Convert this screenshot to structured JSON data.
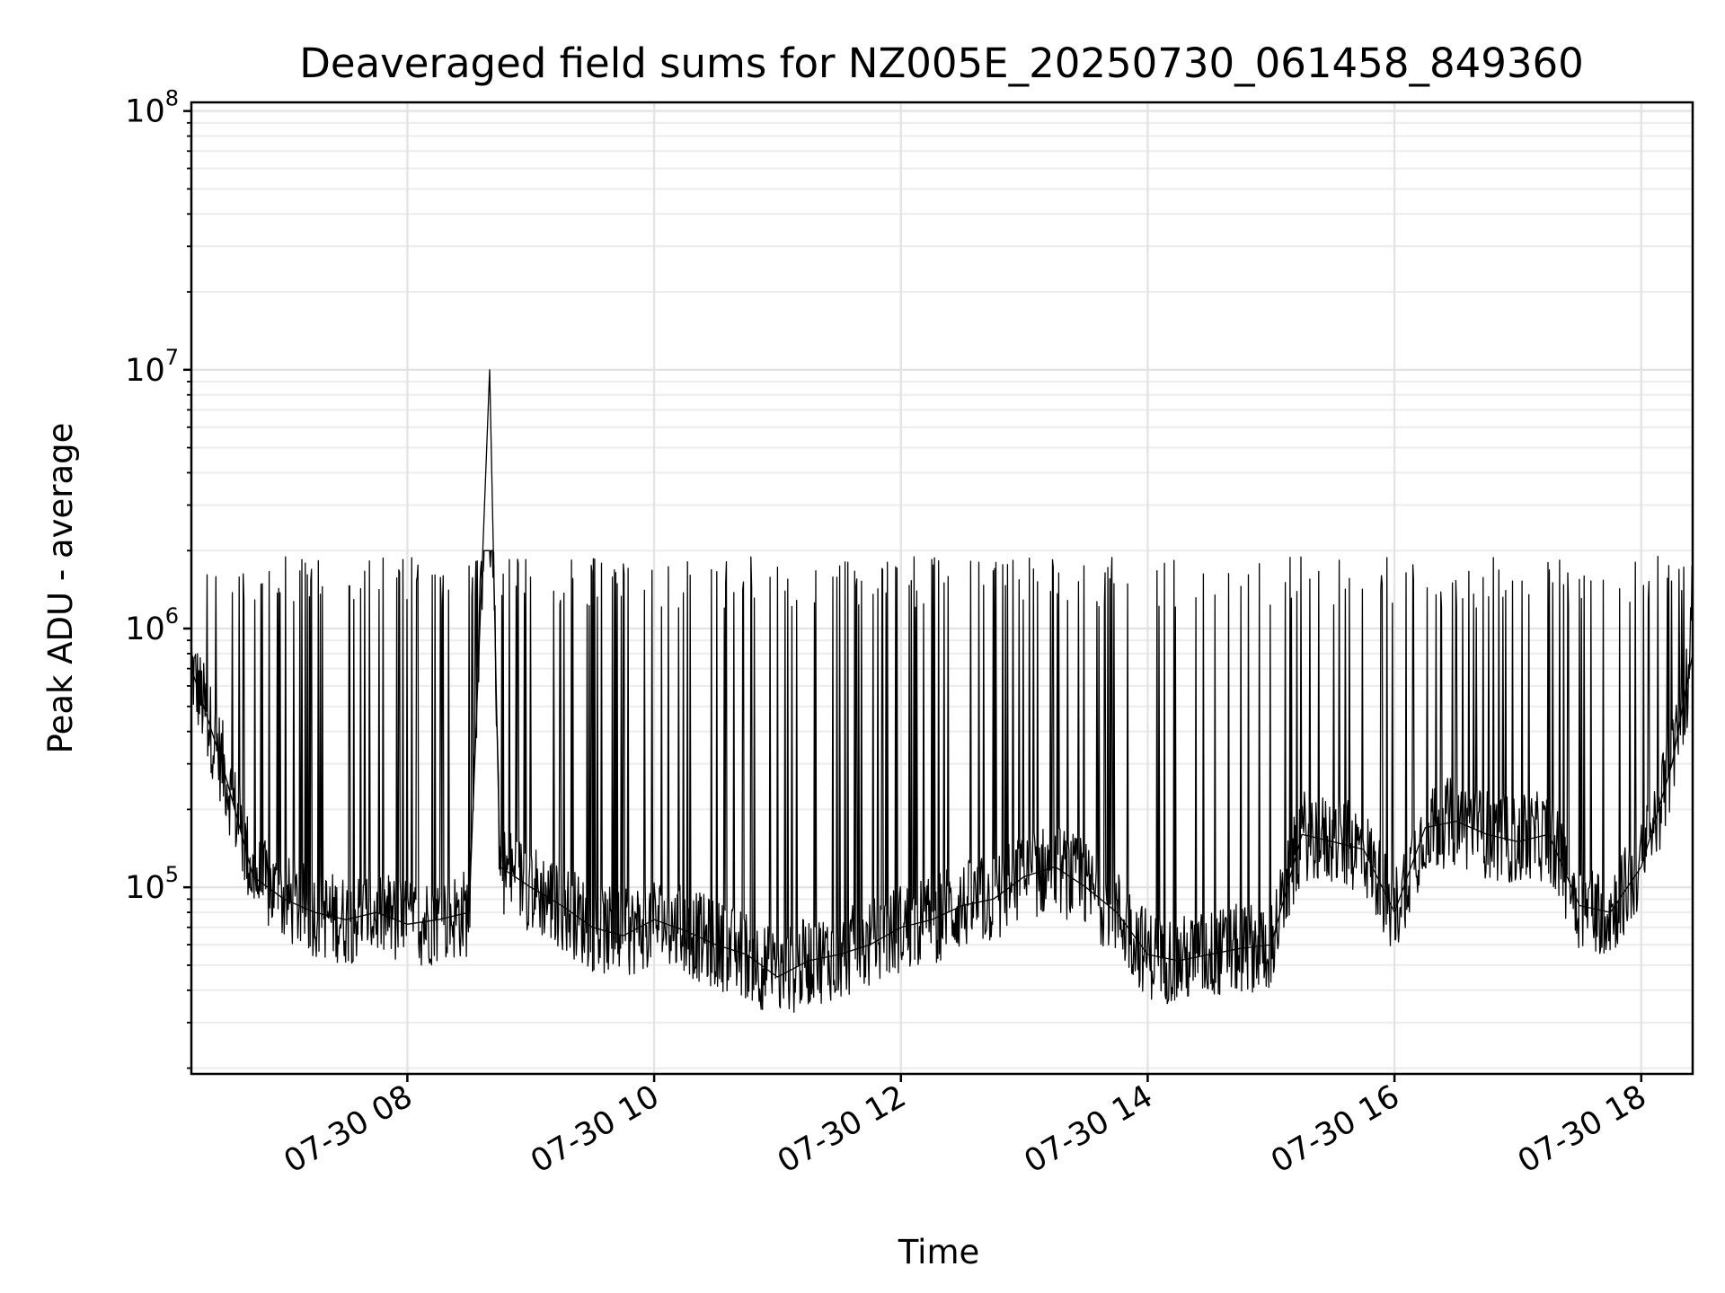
{
  "chart_data": {
    "type": "line",
    "title": "Deaveraged field sums for NZ005E_20250730_061458_849360",
    "xlabel": "Time",
    "ylabel": "Peak ADU - average",
    "yscale": "log",
    "ylim": [
      19000,
      108000000
    ],
    "xlim": [
      "2025-07-30 06:14:58",
      "2025-07-30 18:25:00"
    ],
    "grid": "both",
    "x_ticks": [
      {
        "label": "07-30 08",
        "t": "2025-07-30 08:00"
      },
      {
        "label": "07-30 10",
        "t": "2025-07-30 10:00"
      },
      {
        "label": "07-30 12",
        "t": "2025-07-30 12:00"
      },
      {
        "label": "07-30 14",
        "t": "2025-07-30 14:00"
      },
      {
        "label": "07-30 16",
        "t": "2025-07-30 16:00"
      },
      {
        "label": "07-30 18",
        "t": "2025-07-30 18:00"
      }
    ],
    "y_ticks": [
      {
        "base": "10",
        "exp": "5",
        "value": 100000
      },
      {
        "base": "10",
        "exp": "6",
        "value": 1000000
      },
      {
        "base": "10",
        "exp": "7",
        "value": 10000000
      },
      {
        "base": "10",
        "exp": "8",
        "value": 100000000
      }
    ],
    "series": [
      {
        "color": "#000000",
        "x": [
          "2025-07-30 06:15",
          "2025-07-30 06:30",
          "2025-07-30 06:45",
          "2025-07-30 07:00",
          "2025-07-30 07:15",
          "2025-07-30 07:30",
          "2025-07-30 07:45",
          "2025-07-30 08:00",
          "2025-07-30 08:15",
          "2025-07-30 08:30",
          "2025-07-30 08:40",
          "2025-07-30 08:45",
          "2025-07-30 09:00",
          "2025-07-30 09:15",
          "2025-07-30 09:30",
          "2025-07-30 09:45",
          "2025-07-30 10:00",
          "2025-07-30 10:15",
          "2025-07-30 10:30",
          "2025-07-30 10:45",
          "2025-07-30 11:00",
          "2025-07-30 11:15",
          "2025-07-30 11:30",
          "2025-07-30 11:45",
          "2025-07-30 12:00",
          "2025-07-30 12:15",
          "2025-07-30 12:30",
          "2025-07-30 12:45",
          "2025-07-30 13:00",
          "2025-07-30 13:15",
          "2025-07-30 13:30",
          "2025-07-30 13:45",
          "2025-07-30 14:00",
          "2025-07-30 14:15",
          "2025-07-30 14:30",
          "2025-07-30 14:45",
          "2025-07-30 15:00",
          "2025-07-30 15:15",
          "2025-07-30 15:30",
          "2025-07-30 15:45",
          "2025-07-30 16:00",
          "2025-07-30 16:15",
          "2025-07-30 16:30",
          "2025-07-30 16:45",
          "2025-07-30 17:00",
          "2025-07-30 17:15",
          "2025-07-30 17:30",
          "2025-07-30 17:45",
          "2025-07-30 18:00",
          "2025-07-30 18:15",
          "2025-07-30 18:25"
        ],
        "y": [
          700000,
          300000,
          110000,
          90000,
          80000,
          75000,
          80000,
          72000,
          75000,
          80000,
          10000000,
          120000,
          100000,
          85000,
          70000,
          65000,
          75000,
          68000,
          60000,
          55000,
          45000,
          52000,
          55000,
          60000,
          70000,
          75000,
          85000,
          90000,
          110000,
          120000,
          100000,
          80000,
          55000,
          52000,
          55000,
          58000,
          60000,
          160000,
          150000,
          140000,
          80000,
          170000,
          180000,
          160000,
          150000,
          160000,
          85000,
          80000,
          120000,
          300000,
          800000
        ]
      }
    ]
  }
}
